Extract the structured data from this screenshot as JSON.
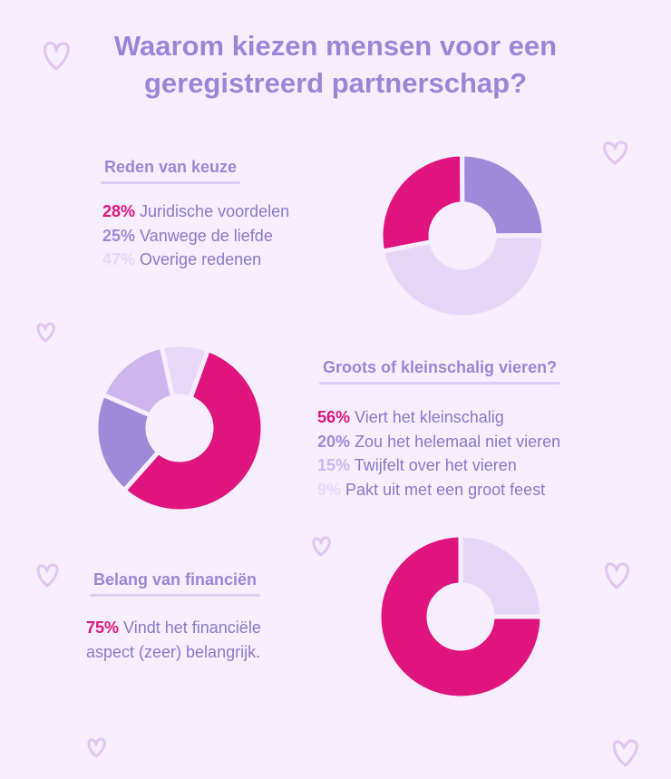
{
  "title": "Waarom kiezen mensen voor een geregistreerd partnerschap?",
  "chart_data": [
    {
      "type": "pie",
      "title": "Reden van keuze",
      "categories": [
        "Juridische voordelen",
        "Vanwege de liefde",
        "Overige redenen"
      ],
      "values": [
        28,
        25,
        47
      ],
      "value_labels": [
        "28%",
        "25%",
        "47%"
      ],
      "colors": [
        "#e0147f",
        "#9d8ad8",
        "#e6d7f8"
      ]
    },
    {
      "type": "pie",
      "title": "Groots of kleinschalig vieren?",
      "categories": [
        "Viert het kleinschalig",
        "Zou het helemaal niet vieren",
        "Twijfelt over het vieren",
        "Pakt uit met een groot feest"
      ],
      "values": [
        56,
        20,
        15,
        9
      ],
      "value_labels": [
        "56%",
        "20%",
        "15%",
        "9%"
      ],
      "colors": [
        "#e0147f",
        "#9d8ad8",
        "#cdb6ef",
        "#e8d9f9"
      ]
    },
    {
      "type": "pie",
      "title": "Belang van financiën",
      "categories": [
        "Vindt het financiële aspect (zeer) belangrijk.",
        null
      ],
      "values": [
        75,
        25
      ],
      "value_labels": [
        "75%",
        null
      ],
      "colors": [
        "#e0147f",
        "#e6d7f8"
      ]
    }
  ]
}
